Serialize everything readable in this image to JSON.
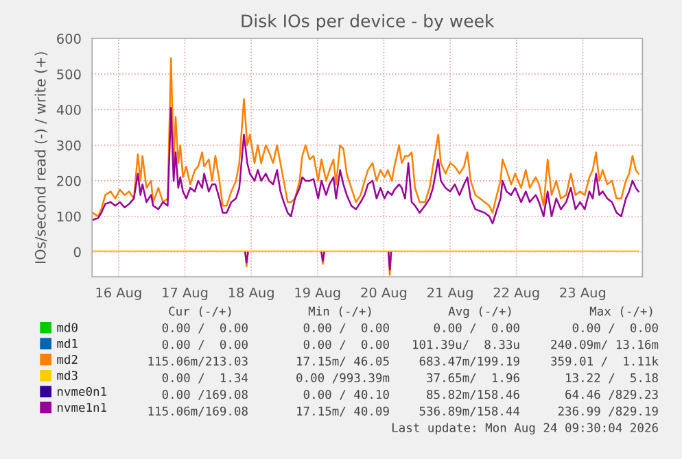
{
  "chart_data": {
    "type": "line",
    "title": "Disk IOs per device - by week",
    "ylabel": "IOs/second read (-) / write (+)",
    "x": [
      "2026-08-16T02:38",
      "2026-08-16T04:34",
      "2026-08-16T05:46",
      "2026-08-16T07:12",
      "2026-08-16T09:07",
      "2026-08-16T10:48",
      "2026-08-16T12:29",
      "2026-08-16T14:10",
      "2026-08-16T15:50",
      "2026-08-16T17:31",
      "2026-08-16T18:58",
      "2026-08-16T19:55",
      "2026-08-16T20:38",
      "2026-08-16T22:05",
      "2026-08-16T23:46",
      "2026-08-17T00:29",
      "2026-08-17T02:24",
      "2026-08-17T04:05",
      "2026-08-17T05:46",
      "2026-08-17T06:58",
      "2026-08-17T07:55",
      "2026-08-17T08:38",
      "2026-08-17T09:36",
      "2026-08-17T10:19",
      "2026-08-17T11:17",
      "2026-08-17T12:29",
      "2026-08-17T13:55",
      "2026-08-17T15:36",
      "2026-08-17T16:48",
      "2026-08-17T18:14",
      "2026-08-17T18:58",
      "2026-08-17T20:38",
      "2026-08-17T21:50",
      "2026-08-17T23:02",
      "2026-08-18T00:29",
      "2026-08-18T01:41",
      "2026-08-18T03:07",
      "2026-08-18T04:48",
      "2026-08-18T06:29",
      "2026-08-18T07:41",
      "2026-08-18T09:22",
      "2026-08-18T10:34",
      "2026-08-18T11:31",
      "2026-08-18T13:12",
      "2026-08-18T14:24",
      "2026-08-18T15:36",
      "2026-08-18T17:17",
      "2026-08-18T18:29",
      "2026-08-18T19:55",
      "2026-08-18T21:22",
      "2026-08-18T22:34",
      "2026-08-18T23:46",
      "2026-08-19T01:12",
      "2026-08-19T02:24",
      "2026-08-19T03:50",
      "2026-08-19T05:31",
      "2026-08-19T06:29",
      "2026-08-19T07:41",
      "2026-08-19T09:07",
      "2026-08-19T10:34",
      "2026-08-19T12:14",
      "2026-08-19T13:26",
      "2026-08-19T15:07",
      "2026-08-19T16:19",
      "2026-08-19T17:46",
      "2026-08-19T18:43",
      "2026-08-19T20:10",
      "2026-08-19T21:22",
      "2026-08-19T22:34",
      "2026-08-20T00:14",
      "2026-08-20T01:55",
      "2026-08-20T03:36",
      "2026-08-20T05:02",
      "2026-08-20T06:14",
      "2026-08-20T07:55",
      "2026-08-20T09:22",
      "2026-08-20T10:48",
      "2026-08-20T12:14",
      "2026-08-20T13:26",
      "2026-08-20T14:53",
      "2026-08-20T15:50",
      "2026-08-20T17:31",
      "2026-08-20T18:29",
      "2026-08-20T19:41",
      "2026-08-20T20:53",
      "2026-08-20T22:05",
      "2026-08-20T23:17",
      "2026-08-21T00:58",
      "2026-08-21T02:53",
      "2026-08-21T04:34",
      "2026-08-21T05:46",
      "2026-08-21T07:41",
      "2026-08-21T08:38",
      "2026-08-21T10:19",
      "2026-08-21T12:00",
      "2026-08-21T13:41",
      "2026-08-21T15:22",
      "2026-08-21T17:02",
      "2026-08-21T18:14",
      "2026-08-21T19:26",
      "2026-08-21T21:07",
      "2026-08-21T22:48",
      "2026-08-22T00:29",
      "2026-08-22T02:10",
      "2026-08-22T03:22",
      "2026-08-22T04:34",
      "2026-08-22T06:14",
      "2026-08-22T06:58",
      "2026-08-22T08:24",
      "2026-08-22T10:05",
      "2026-08-22T11:31",
      "2026-08-22T13:41",
      "2026-08-22T15:22",
      "2026-08-22T16:48",
      "2026-08-22T18:58",
      "2026-08-22T20:10",
      "2026-08-22T21:50",
      "2026-08-22T23:17",
      "2026-08-23T00:43",
      "2026-08-23T02:24",
      "2026-08-23T04:05",
      "2026-08-23T06:00",
      "2026-08-23T07:41",
      "2026-08-23T09:22",
      "2026-08-23T11:02",
      "2026-08-23T12:43",
      "2026-08-23T14:24",
      "2026-08-23T15:36",
      "2026-08-23T16:48",
      "2026-08-23T18:00",
      "2026-08-23T19:12",
      "2026-08-23T20:53",
      "2026-08-23T22:34",
      "2026-08-24T00:14",
      "2026-08-24T01:55",
      "2026-08-24T03:36",
      "2026-08-24T04:48",
      "2026-08-24T06:00",
      "2026-08-24T07:12",
      "2026-08-24T08:10"
    ],
    "series": [
      {
        "name": "md0",
        "color": "#00cc00",
        "values": [
          null,
          null,
          null,
          null,
          null,
          null,
          null,
          null,
          null,
          null,
          null,
          null,
          null,
          null,
          null,
          null,
          null,
          null,
          null,
          null,
          null,
          null,
          null,
          null,
          null,
          null,
          null,
          null,
          null,
          null,
          null,
          null,
          null,
          null,
          null,
          null,
          null,
          null,
          null,
          null,
          null,
          null,
          null,
          null,
          null,
          null,
          null,
          null,
          null,
          null,
          null,
          null,
          null,
          null,
          null,
          null,
          null,
          null,
          null,
          null,
          null,
          null,
          null,
          null,
          null,
          null,
          null,
          null,
          null,
          null,
          null,
          null,
          null,
          null,
          null,
          null,
          null,
          null,
          null,
          null,
          null,
          null,
          null,
          null,
          null,
          null,
          null,
          null,
          null,
          null,
          null,
          null,
          null,
          null,
          null,
          null,
          null,
          null,
          null,
          null,
          null,
          null,
          null,
          null,
          null,
          null,
          null,
          null,
          null,
          null,
          null,
          null,
          null,
          null,
          null,
          null,
          null,
          null,
          null,
          null,
          null,
          null,
          null,
          null,
          null,
          null,
          null,
          null,
          null,
          null,
          null,
          null,
          null,
          null,
          null,
          null,
          null,
          null,
          null,
          null
        ]
      },
      {
        "name": "md1",
        "color": "#0066b3",
        "values": [
          null,
          null,
          null,
          null,
          null,
          null,
          null,
          null,
          null,
          null,
          null,
          null,
          null,
          null,
          null,
          null,
          null,
          null,
          null,
          null,
          null,
          null,
          null,
          null,
          null,
          null,
          null,
          null,
          null,
          null,
          null,
          null,
          null,
          null,
          null,
          null,
          null,
          null,
          null,
          null,
          null,
          null,
          null,
          null,
          null,
          null,
          null,
          null,
          null,
          null,
          null,
          null,
          null,
          null,
          null,
          null,
          null,
          null,
          null,
          null,
          null,
          null,
          null,
          null,
          null,
          null,
          null,
          null,
          null,
          null,
          null,
          null,
          null,
          null,
          null,
          null,
          null,
          null,
          null,
          null,
          null,
          null,
          null,
          null,
          null,
          null,
          null,
          null,
          null,
          null,
          null,
          null,
          null,
          null,
          null,
          null,
          null,
          null,
          null,
          null,
          null,
          null,
          null,
          null,
          null,
          null,
          null,
          null,
          null,
          null,
          null,
          null,
          null,
          null,
          null,
          null,
          null,
          null,
          null,
          null,
          null,
          null,
          null,
          null,
          null,
          null,
          null,
          null,
          null,
          null,
          null,
          null,
          null,
          null,
          null,
          null,
          null,
          null,
          null,
          null
        ]
      },
      {
        "name": "md2",
        "color": "#ff8000",
        "values": [
          110,
          100,
          120,
          160,
          170,
          150,
          175,
          160,
          170,
          150,
          275,
          200,
          270,
          180,
          200,
          140,
          180,
          140,
          150,
          545,
          250,
          380,
          250,
          300,
          210,
          240,
          190,
          230,
          240,
          280,
          240,
          260,
          200,
          270,
          200,
          130,
          130,
          170,
          200,
          250,
          430,
          300,
          330,
          250,
          300,
          250,
          300,
          280,
          250,
          300,
          250,
          200,
          140,
          140,
          150,
          200,
          270,
          300,
          260,
          270,
          200,
          260,
          200,
          230,
          260,
          190,
          300,
          290,
          220,
          180,
          140,
          160,
          200,
          230,
          250,
          200,
          230,
          210,
          230,
          200,
          240,
          300,
          250,
          270,
          270,
          280,
          180,
          140,
          140,
          180,
          240,
          330,
          250,
          220,
          250,
          240,
          220,
          240,
          280,
          200,
          160,
          150,
          140,
          130,
          110,
          150,
          200,
          260,
          230,
          190,
          220,
          180,
          230,
          180,
          210,
          190,
          130,
          260,
          160,
          200,
          150,
          160,
          220,
          160,
          170,
          160,
          210,
          230,
          280,
          200,
          230,
          190,
          200,
          150,
          150,
          200,
          220,
          270,
          230,
          220
        ]
      },
      {
        "name": "md3",
        "color": "#ffcc00",
        "x": [
          "2026-08-16T02:38",
          "2026-08-24T08:10"
        ],
        "values": [
          2,
          2
        ]
      },
      {
        "name": "nvme0n1",
        "color": "#330099",
        "values": [
          null,
          null,
          null,
          null,
          null,
          null,
          null,
          null,
          null,
          null,
          null,
          null,
          null,
          null,
          null,
          null,
          null,
          null,
          null,
          null,
          null,
          null,
          null,
          null,
          null,
          null,
          null,
          null,
          null,
          null,
          null,
          null,
          null,
          null,
          null,
          null,
          null,
          null,
          null,
          null,
          null,
          null,
          null,
          null,
          null,
          null,
          null,
          null,
          null,
          null,
          null,
          null,
          null,
          null,
          null,
          null,
          null,
          null,
          null,
          null,
          null,
          null,
          null,
          null,
          null,
          null,
          null,
          null,
          null,
          null,
          null,
          null,
          null,
          null,
          null,
          null,
          null,
          null,
          null,
          null,
          null,
          null,
          null,
          null,
          null,
          null,
          null,
          null,
          null,
          null,
          null,
          null,
          null,
          null,
          null,
          null,
          null,
          null,
          null,
          null,
          null,
          null,
          null,
          null,
          null,
          null,
          null,
          null,
          null,
          null,
          null,
          null,
          null,
          null,
          null,
          null,
          null,
          null,
          null,
          null,
          null,
          null,
          null,
          null,
          null,
          null,
          null,
          null,
          null,
          null,
          null,
          null,
          null,
          null,
          null,
          null,
          null,
          null,
          null,
          null
        ]
      },
      {
        "name": "nvme1n1",
        "color": "#990099",
        "values": [
          90,
          95,
          110,
          135,
          140,
          130,
          140,
          125,
          135,
          150,
          220,
          160,
          190,
          140,
          160,
          130,
          120,
          140,
          130,
          405,
          200,
          280,
          180,
          210,
          170,
          150,
          180,
          170,
          200,
          180,
          220,
          170,
          190,
          190,
          150,
          110,
          110,
          140,
          150,
          180,
          330,
          250,
          220,
          200,
          230,
          200,
          220,
          200,
          190,
          230,
          170,
          140,
          110,
          100,
          150,
          180,
          210,
          200,
          200,
          205,
          150,
          200,
          160,
          190,
          210,
          150,
          230,
          190,
          160,
          130,
          120,
          140,
          160,
          190,
          200,
          150,
          180,
          150,
          170,
          160,
          175,
          190,
          180,
          150,
          250,
          140,
          130,
          110,
          130,
          150,
          180,
          260,
          200,
          180,
          170,
          190,
          160,
          190,
          210,
          150,
          120,
          115,
          110,
          100,
          80,
          110,
          150,
          200,
          170,
          160,
          180,
          140,
          170,
          140,
          160,
          140,
          100,
          170,
          100,
          150,
          120,
          140,
          180,
          120,
          140,
          120,
          170,
          150,
          220,
          160,
          170,
          150,
          140,
          110,
          100,
          150,
          170,
          200,
          180,
          170
        ]
      },
      {
        "color": "#ff8000",
        "x": [
          "2026-08-18T09:50",
          "2026-08-18T10:19",
          "2026-08-18T10:48",
          "2026-08-19T12:00",
          "2026-08-19T13:26",
          "2026-08-19T13:55",
          "2026-08-19T14:24",
          "2026-08-20T12:00",
          "2026-08-20T13:41",
          "2026-08-20T14:10",
          "2026-08-20T14:38"
        ],
        "values": [
          -2,
          -41,
          -2,
          null,
          -2,
          -34,
          -2,
          null,
          -2,
          -65,
          -2
        ]
      },
      {
        "color": "#990099",
        "x": [
          "2026-08-18T09:50",
          "2026-08-18T10:19",
          "2026-08-18T10:48",
          "2026-08-19T12:00",
          "2026-08-19T13:26",
          "2026-08-19T13:55",
          "2026-08-19T14:24",
          "2026-08-20T12:00",
          "2026-08-20T13:41",
          "2026-08-20T14:10",
          "2026-08-20T14:38"
        ],
        "values": [
          -2,
          -30,
          -2,
          null,
          -2,
          -25,
          -2,
          null,
          -2,
          -50,
          -2
        ]
      }
    ],
    "xlim": [
      "2026-08-16T02:24",
      "2026-08-24T09:36"
    ],
    "xticks": [
      {
        "value": "2026-08-16T12:00",
        "label": "16 Aug"
      },
      {
        "value": "2026-08-17T12:00",
        "label": "17 Aug"
      },
      {
        "value": "2026-08-18T12:00",
        "label": "18 Aug"
      },
      {
        "value": "2026-08-19T12:00",
        "label": "19 Aug"
      },
      {
        "value": "2026-08-20T12:00",
        "label": "20 Aug"
      },
      {
        "value": "2026-08-21T12:00",
        "label": "21 Aug"
      },
      {
        "value": "2026-08-22T12:00",
        "label": "22 Aug"
      },
      {
        "value": "2026-08-23T12:00",
        "label": "23 Aug"
      }
    ],
    "ylim": [
      -70,
      600
    ],
    "yticks": [
      0,
      100,
      200,
      300,
      400,
      500,
      600
    ],
    "grid": true,
    "legend": "bottom",
    "annotations": [
      "Cur (-/+)",
      "Min (-/+)",
      "Avg (-/+)",
      "Max (-/+)",
      "0.00 /  0.00",
      "0.00 /  0.00",
      "0.00 /  0.00",
      "0.00 /  0.00",
      "0.00 /  0.00",
      "0.00 /  0.00",
      "101.39u/  8.33u",
      "240.09m/ 13.16m",
      "115.06m/213.03",
      "17.15m/ 46.05",
      "683.47m/199.19",
      "359.01 /  1.11k",
      "0.00 /  1.34",
      "0.00 /993.39m",
      "37.65m/  1.96",
      "13.22 /  5.18",
      "0.00 /169.08",
      "0.00 / 40.10",
      "85.82m/158.46",
      "64.46 /829.23",
      "115.06m/169.08",
      "17.15m/ 40.09",
      "536.89m/158.44",
      "236.99 /829.19",
      "Last update: Mon Aug 24 09:30:04 2026"
    ]
  }
}
